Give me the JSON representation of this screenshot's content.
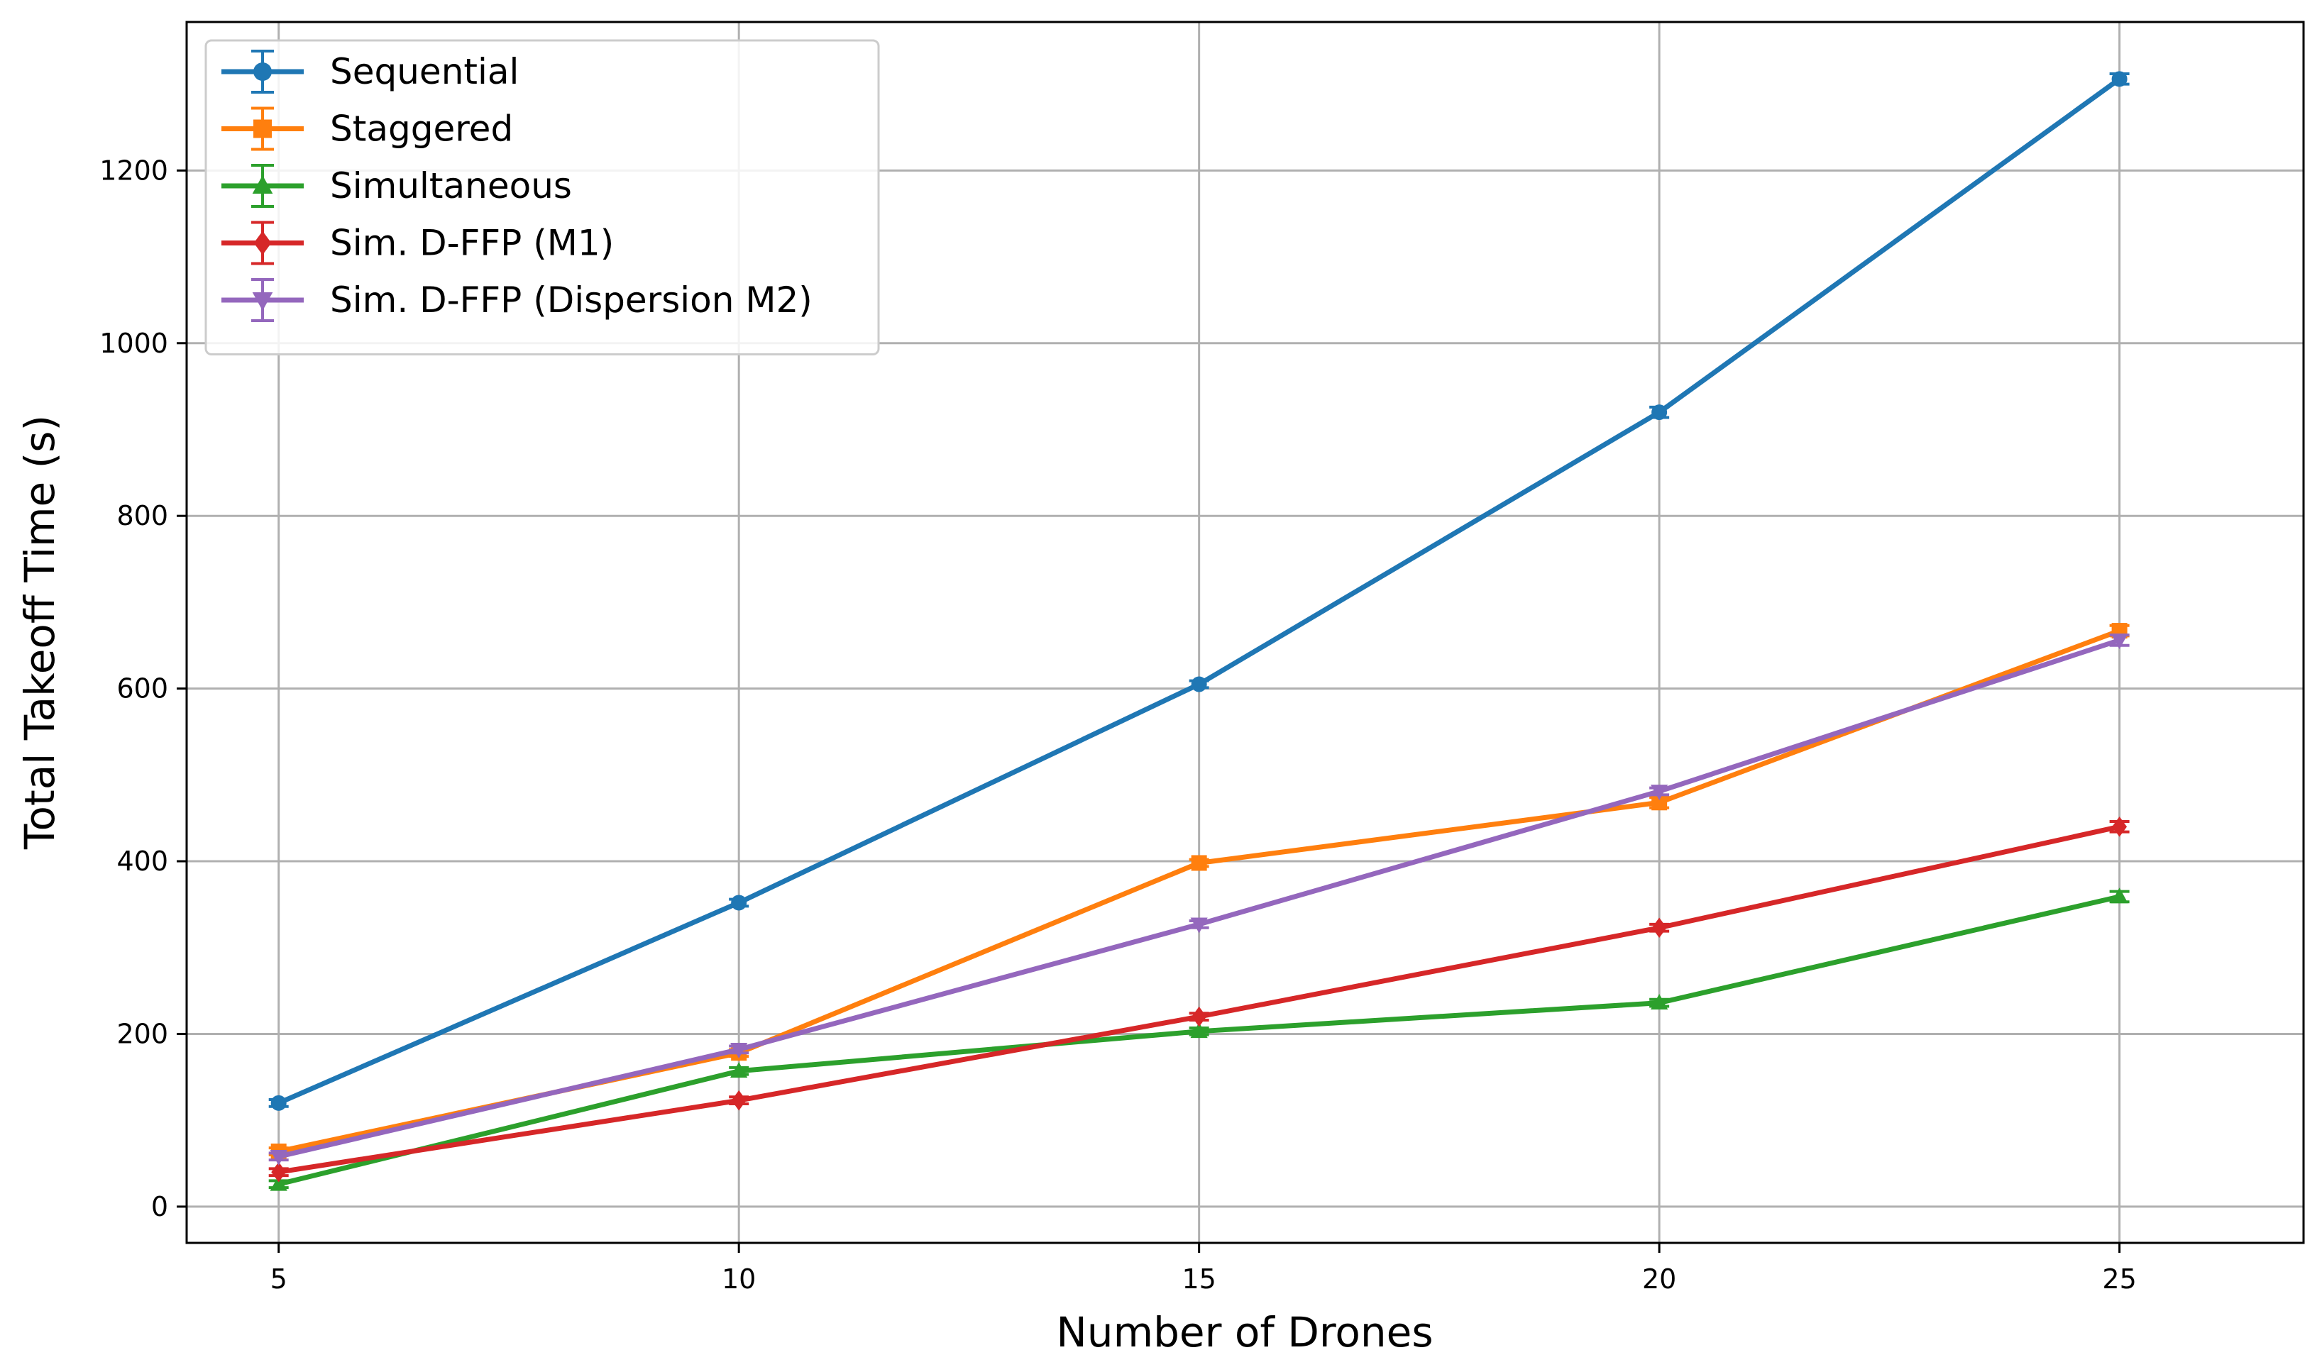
{
  "chart_data": {
    "type": "line",
    "title": "",
    "xlabel": "Number of Drones",
    "ylabel": "Total Takeoff Time (s)",
    "x": [
      5,
      10,
      15,
      20,
      25
    ],
    "xticks": [
      "5",
      "10",
      "15",
      "20",
      "25"
    ],
    "yticks": [
      "0",
      "200",
      "400",
      "600",
      "800",
      "1000",
      "1200"
    ],
    "xlim": [
      4,
      27
    ],
    "ylim": [
      -42,
      1372
    ],
    "grid": true,
    "legend_position": "top-left",
    "error_bars": true,
    "series": [
      {
        "name": "Sequential",
        "color": "#1f77b4",
        "marker": "circle",
        "values": [
          120,
          352,
          605,
          920,
          1306
        ],
        "errors": [
          4,
          4,
          4,
          6,
          6
        ]
      },
      {
        "name": "Staggered",
        "color": "#ff7f0e",
        "marker": "square",
        "values": [
          64,
          178,
          398,
          468,
          667
        ],
        "errors": [
          4,
          4,
          4,
          6,
          6
        ]
      },
      {
        "name": "Simultaneous",
        "color": "#2ca02c",
        "marker": "triangle-up",
        "values": [
          26,
          157,
          203,
          236,
          359
        ],
        "errors": [
          4,
          4,
          4,
          4,
          6
        ]
      },
      {
        "name": "Sim. D-FFP (M1)",
        "color": "#d62728",
        "marker": "diamond",
        "values": [
          40,
          123,
          220,
          323,
          440
        ],
        "errors": [
          4,
          4,
          4,
          4,
          6
        ]
      },
      {
        "name": "Sim. D-FFP (Dispersion M2)",
        "color": "#9467bd",
        "marker": "triangle-down",
        "values": [
          58,
          182,
          327,
          481,
          656
        ],
        "errors": [
          4,
          4,
          4,
          4,
          6
        ]
      }
    ]
  }
}
